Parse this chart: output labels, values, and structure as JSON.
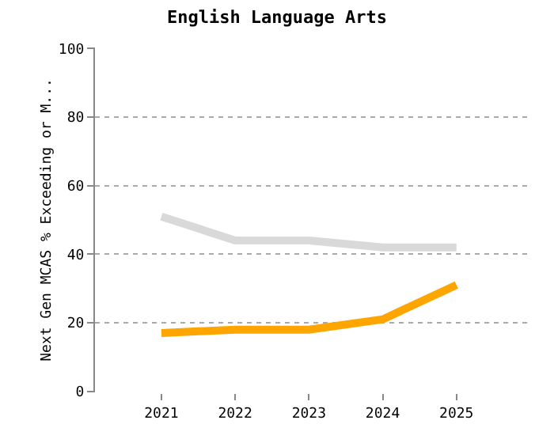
{
  "chart_data": {
    "type": "line",
    "title": "English Language Arts",
    "ylabel": "Next Gen MCAS % Exceeding or M...",
    "categories": [
      "2021",
      "2022",
      "2023",
      "2024",
      "2025"
    ],
    "series": [
      {
        "color": "#d9d9d9",
        "values": [
          51,
          44,
          44,
          42,
          42
        ]
      },
      {
        "color": "#ffa500",
        "values": [
          17,
          18,
          18,
          21,
          31
        ]
      }
    ],
    "ylim": [
      0,
      100
    ],
    "yticks": [
      0,
      20,
      40,
      60,
      80,
      100
    ],
    "grid": "y",
    "marker": "none",
    "line_style": "solid"
  }
}
